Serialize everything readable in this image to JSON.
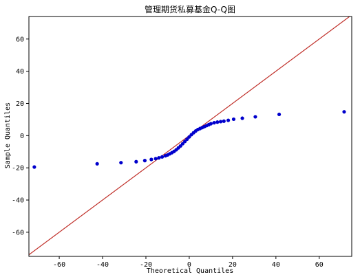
{
  "chart_data": {
    "type": "scatter",
    "title": "管理期货私募基金Q-Q图",
    "xlabel": "Theoretical Quantiles",
    "ylabel": "Sample Quantiles",
    "xlim": [
      -74,
      75
    ],
    "ylim": [
      -75,
      74
    ],
    "xticks": [
      -60,
      -40,
      -20,
      0,
      20,
      40,
      60
    ],
    "yticks": [
      -60,
      -40,
      -20,
      0,
      20,
      40,
      60
    ],
    "grid": false,
    "reference_line": {
      "type": "45-degree",
      "color": "#c0302a"
    },
    "marker_color": "#0000cc",
    "points": [
      [
        -71.5,
        -19.5
      ],
      [
        -42.5,
        -17.5
      ],
      [
        -31.5,
        -16.8
      ],
      [
        -24.5,
        -16.2
      ],
      [
        -20.5,
        -15.5
      ],
      [
        -17.5,
        -14.8
      ],
      [
        -15.5,
        -14.3
      ],
      [
        -14.0,
        -13.8
      ],
      [
        -12.5,
        -13.2
      ],
      [
        -11.0,
        -12.5
      ],
      [
        -10.0,
        -12.0
      ],
      [
        -9.0,
        -11.3
      ],
      [
        -8.0,
        -10.6
      ],
      [
        -7.0,
        -9.8
      ],
      [
        -6.0,
        -8.8
      ],
      [
        -5.0,
        -7.6
      ],
      [
        -4.0,
        -6.4
      ],
      [
        -3.0,
        -5.0
      ],
      [
        -2.0,
        -3.6
      ],
      [
        -1.0,
        -2.2
      ],
      [
        0.0,
        -0.8
      ],
      [
        1.0,
        0.6
      ],
      [
        2.0,
        1.8
      ],
      [
        3.0,
        2.9
      ],
      [
        4.0,
        3.8
      ],
      [
        5.0,
        4.4
      ],
      [
        6.0,
        5.0
      ],
      [
        7.0,
        5.6
      ],
      [
        8.0,
        6.2
      ],
      [
        9.0,
        6.8
      ],
      [
        10.0,
        7.4
      ],
      [
        11.5,
        8.0
      ],
      [
        13.0,
        8.4
      ],
      [
        14.5,
        8.7
      ],
      [
        16.0,
        9.0
      ],
      [
        18.0,
        9.5
      ],
      [
        20.5,
        10.2
      ],
      [
        24.5,
        10.8
      ],
      [
        30.5,
        11.7
      ],
      [
        41.5,
        13.2
      ],
      [
        71.5,
        14.8
      ]
    ]
  }
}
